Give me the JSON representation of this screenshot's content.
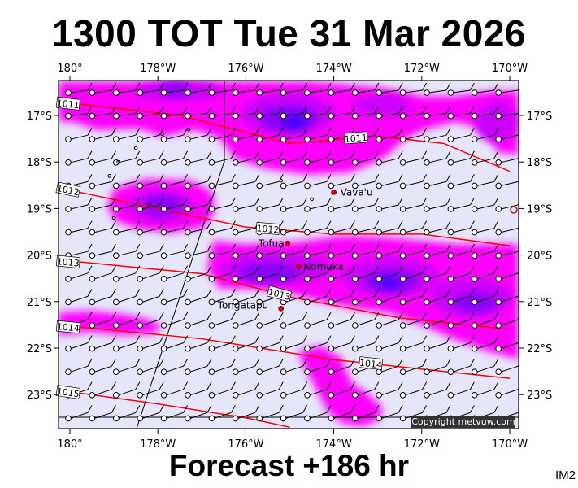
{
  "header": {
    "title": "1300 TOT Tue 31 Mar 2026"
  },
  "footer": {
    "forecast": "Forecast +186 hr",
    "tag": "IM2"
  },
  "map": {
    "lon_labels": [
      "180°",
      "178°W",
      "176°W",
      "174°W",
      "172°W",
      "170°W"
    ],
    "lat_labels": [
      "17°S",
      "18°S",
      "19°S",
      "20°S",
      "21°S",
      "22°S",
      "23°S"
    ],
    "places": [
      {
        "name": "Vava'u",
        "lon": -174.0,
        "lat": -18.65
      },
      {
        "name": "Tofua",
        "lon": -175.05,
        "lat": -19.75
      },
      {
        "name": "Nomuka",
        "lon": -174.8,
        "lat": -20.25
      },
      {
        "name": "Tongatapu",
        "lon": -175.2,
        "lat": -21.15
      }
    ],
    "isobars": [
      {
        "label": "1011",
        "points": [
          [
            -180.3,
            -16.7
          ],
          [
            -177.5,
            -17.0
          ],
          [
            -175.0,
            -17.6
          ],
          [
            -173.0,
            -17.45
          ],
          [
            -171.5,
            -17.6
          ],
          [
            -170.0,
            -18.2
          ]
        ]
      },
      {
        "label": "1012",
        "points": [
          [
            -180.3,
            -18.55
          ],
          [
            -178.0,
            -19.0
          ],
          [
            -176.0,
            -19.4
          ],
          [
            -174.0,
            -19.55
          ],
          [
            -172.0,
            -19.55
          ],
          [
            -170.0,
            -19.8
          ]
        ]
      },
      {
        "label": "1013",
        "points": [
          [
            -180.3,
            -20.1
          ],
          [
            -177.0,
            -20.4
          ],
          [
            -175.0,
            -20.9
          ],
          [
            -172.5,
            -21.35
          ],
          [
            -170.0,
            -21.6
          ]
        ]
      },
      {
        "label": "1014",
        "points": [
          [
            -180.3,
            -21.5
          ],
          [
            -177.0,
            -21.8
          ],
          [
            -174.0,
            -22.25
          ],
          [
            -171.0,
            -22.55
          ],
          [
            -170.0,
            -22.65
          ]
        ]
      },
      {
        "label": "1015",
        "points": [
          [
            -180.3,
            -22.9
          ],
          [
            -178.0,
            -23.2
          ],
          [
            -176.0,
            -23.5
          ],
          [
            -175.0,
            -23.7
          ]
        ]
      }
    ],
    "isobar_color": "#ff0000",
    "rain_colors": [
      "#ff00ff",
      "#cc00ff",
      "#8800ff",
      "#4400ff"
    ],
    "background_color": "#e6e6fa",
    "copyright": "Copyright metvuw.com"
  }
}
